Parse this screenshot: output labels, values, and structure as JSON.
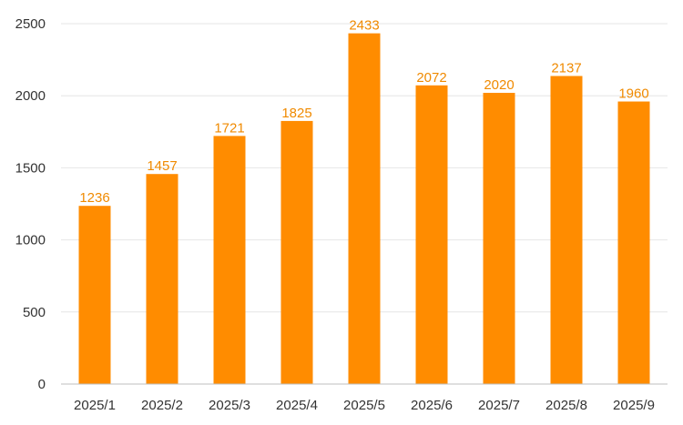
{
  "chart_data": {
    "type": "bar",
    "categories": [
      "2025/1",
      "2025/2",
      "2025/3",
      "2025/4",
      "2025/5",
      "2025/6",
      "2025/7",
      "2025/8",
      "2025/9"
    ],
    "values": [
      1236,
      1457,
      1721,
      1825,
      2433,
      2072,
      2020,
      2137,
      1960
    ],
    "ylim": [
      0,
      2500
    ],
    "yticks": [
      0,
      500,
      1000,
      1500,
      2000,
      2500
    ],
    "grid": true,
    "legend": "none",
    "bar_color": "#FF8C00",
    "label_color": "#F08A00",
    "data_labels": [
      "1236",
      "1457",
      "1721",
      "1825",
      "2433",
      "2072",
      "2020",
      "2137",
      "1960"
    ],
    "ytick_labels": [
      "0",
      "500",
      "1000",
      "1500",
      "2000",
      "2500"
    ]
  }
}
